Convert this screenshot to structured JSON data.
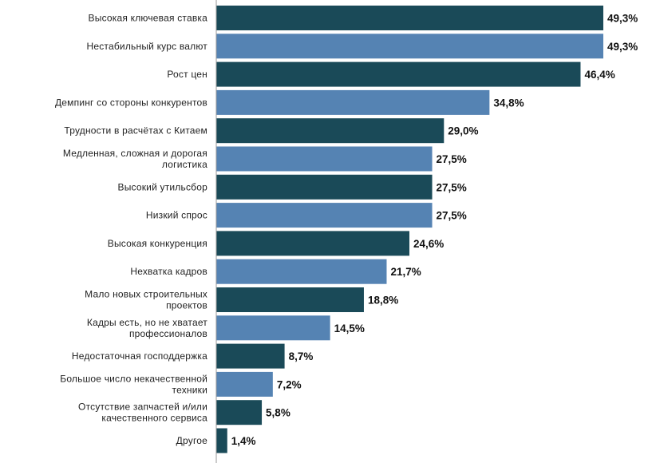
{
  "chart_data": {
    "type": "bar",
    "orientation": "horizontal",
    "title": "",
    "xlabel": "",
    "ylabel": "",
    "xlim": [
      0,
      49.3
    ],
    "grid": false,
    "legend": "none",
    "value_format": "percent-comma-1",
    "colors": {
      "dark": "#1a4a58",
      "light": "#5583b3",
      "axis": "#999999"
    },
    "categories": [
      "Высокая ключевая ставка",
      "Нестабильный курс валют",
      "Рост цен",
      "Демпинг со стороны конкурентов",
      "Трудности в расчётах с Китаем",
      "Медленная, сложная и дорогая логистика",
      "Высокий утильсбор",
      "Низкий спрос",
      "Высокая конкуренция",
      "Нехватка кадров",
      "Мало новых строительных проектов",
      "Кадры есть, но не хватает профессионалов",
      "Недостаточная господдержка",
      "Большое число некачественной техники",
      "Отсутствие запчастей и/или качественного сервиса",
      "Другое"
    ],
    "label_lines": [
      [
        "Высокая ключевая ставка"
      ],
      [
        "Нестабильный курс валют"
      ],
      [
        "Рост цен"
      ],
      [
        "Демпинг со стороны конкурентов"
      ],
      [
        "Трудности в расчётах с Китаем"
      ],
      [
        "Медленная, сложная и дорогая",
        "логистика"
      ],
      [
        "Высокий утильсбор"
      ],
      [
        "Низкий спрос"
      ],
      [
        "Высокая конкуренция"
      ],
      [
        "Нехватка кадров"
      ],
      [
        "Мало новых строительных",
        "проектов"
      ],
      [
        "Кадры есть, но не хватает",
        "профессионалов"
      ],
      [
        "Недостаточная господдержка"
      ],
      [
        "Большое число некачественной",
        "техники"
      ],
      [
        "Отсутствие запчастей и/или",
        "качественного сервиса"
      ],
      [
        "Другое"
      ]
    ],
    "values": [
      49.3,
      49.3,
      46.4,
      34.8,
      29.0,
      27.5,
      27.5,
      27.5,
      24.6,
      21.7,
      18.8,
      14.5,
      8.7,
      7.2,
      5.8,
      1.4
    ],
    "value_labels": [
      "49,3%",
      "49,3%",
      "46,4%",
      "34,8%",
      "29,0%",
      "27,5%",
      "27,5%",
      "27,5%",
      "24,6%",
      "21,7%",
      "18,8%",
      "14,5%",
      "8,7%",
      "7,2%",
      "5,8%",
      "1,4%"
    ],
    "bar_colors": [
      "dark",
      "light",
      "dark",
      "light",
      "dark",
      "light",
      "dark",
      "light",
      "dark",
      "light",
      "dark",
      "light",
      "dark",
      "light",
      "dark",
      "dark"
    ]
  }
}
